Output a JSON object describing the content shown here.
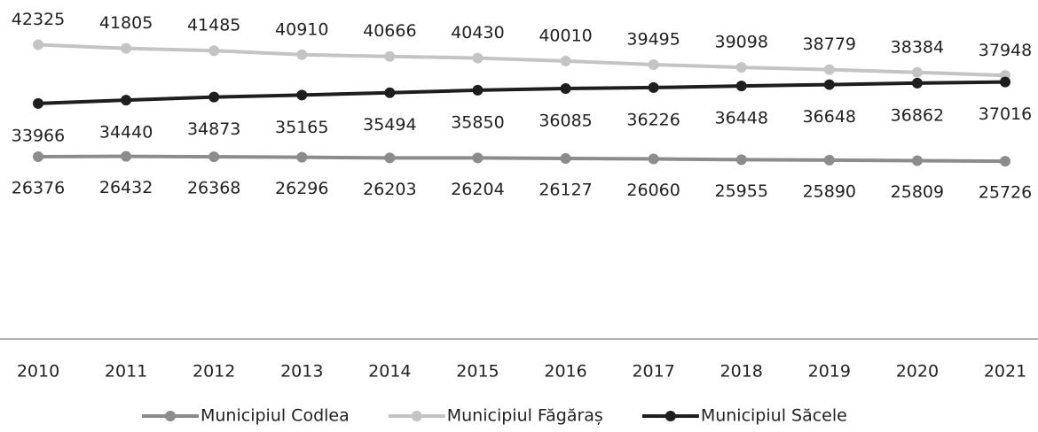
{
  "chart_data": {
    "type": "line",
    "categories": [
      "2010",
      "2011",
      "2012",
      "2013",
      "2014",
      "2015",
      "2016",
      "2017",
      "2018",
      "2019",
      "2020",
      "2021"
    ],
    "series": [
      {
        "name": "Municipiul Codlea",
        "color": "#8c8c8c",
        "values": [
          26376,
          26432,
          26368,
          26296,
          26203,
          26204,
          26127,
          26060,
          25955,
          25890,
          25809,
          25726
        ]
      },
      {
        "name": "Municipiul Făgăraș",
        "color": "#c4c4c4",
        "values": [
          42325,
          41805,
          41485,
          40910,
          40666,
          40430,
          40010,
          39495,
          39098,
          38779,
          38384,
          37948
        ]
      },
      {
        "name": "Municipiul Săcele",
        "color": "#1e1e1e",
        "values": [
          33966,
          34440,
          34873,
          35165,
          35494,
          35850,
          36085,
          36226,
          36448,
          36648,
          36862,
          37016
        ]
      }
    ],
    "ylim": [
      400,
      48700
    ],
    "legend": "bottom"
  }
}
